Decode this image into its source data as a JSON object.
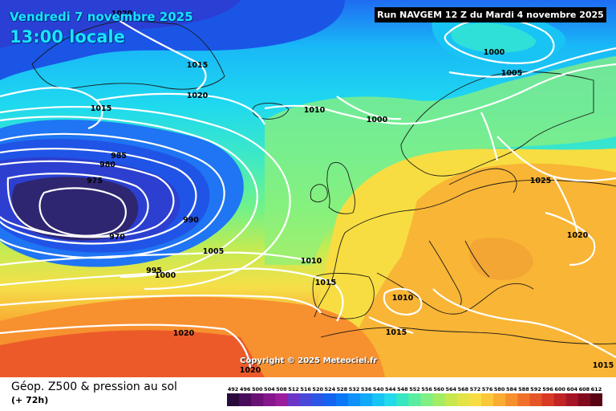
{
  "header": {
    "date": "Vendredi 7 novembre 2025",
    "time": "13:00 locale",
    "run": "Run NAVGEM 12 Z du Mardi 4 novembre 2025"
  },
  "copyright": "Copyright © 2025 Meteociel.fr",
  "legend": {
    "title": "Géop. Z500 & pression au sol",
    "subtitle": "(+ 72h)",
    "scale_values": [
      "492",
      "496",
      "500",
      "504",
      "508",
      "512",
      "516",
      "520",
      "524",
      "528",
      "532",
      "536",
      "540",
      "544",
      "548",
      "552",
      "556",
      "560",
      "564",
      "568",
      "572",
      "576",
      "580",
      "584",
      "588",
      "592",
      "596",
      "600",
      "604",
      "608",
      "612"
    ],
    "scale_colors": [
      "#2a0a3c",
      "#4a0d5c",
      "#6a1175",
      "#85168b",
      "#9a1d9e",
      "#6d35c5",
      "#4a48d8",
      "#2c56e6",
      "#1464f0",
      "#0c78f5",
      "#0e92f8",
      "#12aaf8",
      "#18c4f4",
      "#22daea",
      "#38e6c2",
      "#5aeda0",
      "#7ff081",
      "#a4ec62",
      "#c8e74f",
      "#e4e348",
      "#f7dd42",
      "#fbc83a",
      "#f9ad33",
      "#f6902e",
      "#f0722a",
      "#e65527",
      "#d83a26",
      "#c22426",
      "#a51526",
      "#820a1f",
      "#5a0413"
    ]
  },
  "isobars": [
    {
      "label": "1020",
      "value": 1020
    },
    {
      "label": "1015",
      "value": 1015
    },
    {
      "label": "1020",
      "value": 1020
    },
    {
      "label": "1015",
      "value": 1015
    },
    {
      "label": "1010",
      "value": 1010
    },
    {
      "label": "1000",
      "value": 1000
    },
    {
      "label": "1000",
      "value": 1000
    },
    {
      "label": "1005",
      "value": 1005
    },
    {
      "label": "985",
      "value": 985
    },
    {
      "label": "980",
      "value": 980
    },
    {
      "label": "975",
      "value": 975
    },
    {
      "label": "990",
      "value": 990
    },
    {
      "label": "970",
      "value": 970
    },
    {
      "label": "1005",
      "value": 1005
    },
    {
      "label": "995",
      "value": 995
    },
    {
      "label": "1000",
      "value": 1000
    },
    {
      "label": "1010",
      "value": 1010
    },
    {
      "label": "1015",
      "value": 1015
    },
    {
      "label": "1010",
      "value": 1010
    },
    {
      "label": "1015",
      "value": 1015
    },
    {
      "label": "1020",
      "value": 1020
    },
    {
      "label": "1020",
      "value": 1020
    },
    {
      "label": "1025",
      "value": 1025
    },
    {
      "label": "1020",
      "value": 1020
    },
    {
      "label": "1015",
      "value": 1015
    }
  ]
}
